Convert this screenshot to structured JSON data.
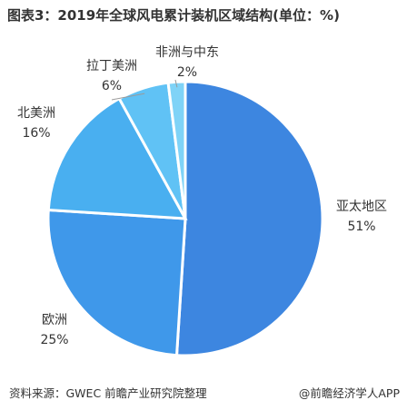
{
  "title": "图表3：2019年全球风电累计装机区域结构(单位：%)",
  "source": "资料来源：GWEC 前瞻产业研究院整理",
  "brand": "@前瞻经济学人APP",
  "chart_data": {
    "type": "pie",
    "title": "图表3：2019年全球风电累计装机区域结构(单位：%)",
    "unit": "%",
    "slices": [
      {
        "label": "亚太地区",
        "value": 51,
        "display": "51%",
        "color": "#3d86e0"
      },
      {
        "label": "欧洲",
        "value": 25,
        "display": "25%",
        "color": "#3f98ea"
      },
      {
        "label": "北美洲",
        "value": 16,
        "display": "16%",
        "color": "#49aff0"
      },
      {
        "label": "拉丁美洲",
        "value": 6,
        "display": "6%",
        "color": "#60c2f5"
      },
      {
        "label": "非洲与中东",
        "value": 2,
        "display": "2%",
        "color": "#7fd3f7"
      }
    ]
  }
}
